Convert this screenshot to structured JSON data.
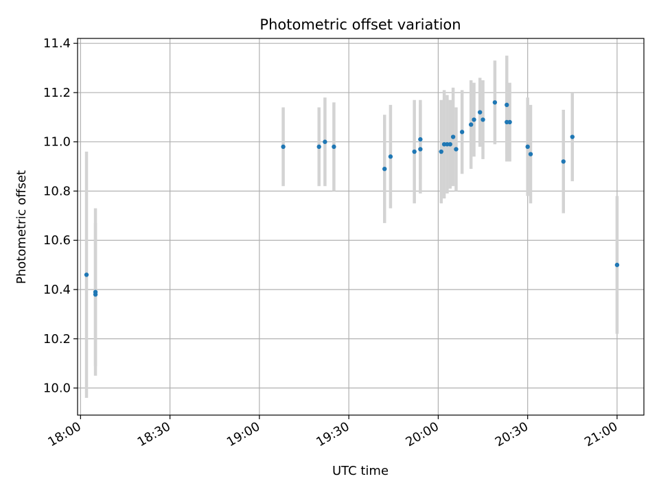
{
  "chart_data": {
    "type": "scatter",
    "title": "Photometric offset variation",
    "xlabel": "UTC time",
    "ylabel": "Photometric offset",
    "grid": true,
    "x_ticks": [
      "18:00",
      "18:30",
      "19:00",
      "19:30",
      "20:00",
      "20:30",
      "21:00"
    ],
    "y_ticks": [
      "10.0",
      "10.2",
      "10.4",
      "10.6",
      "10.8",
      "11.0",
      "11.2",
      "11.4"
    ],
    "xlim": [
      "17:59",
      "21:09"
    ],
    "ylim": [
      9.89,
      11.42
    ],
    "marker_color": "#1f77b4",
    "errorbar_color": "#d3d3d3",
    "points": [
      {
        "time": "18:02",
        "value": 10.46,
        "error": 0.5
      },
      {
        "time": "18:05",
        "value": 10.38,
        "error": 0.29
      },
      {
        "time": "18:05",
        "value": 10.39,
        "error": 0.34
      },
      {
        "time": "19:08",
        "value": 10.98,
        "error": 0.16
      },
      {
        "time": "19:20",
        "value": 10.98,
        "error": 0.16
      },
      {
        "time": "19:22",
        "value": 11.0,
        "error": 0.18
      },
      {
        "time": "19:25",
        "value": 10.98,
        "error": 0.18
      },
      {
        "time": "19:42",
        "value": 10.89,
        "error": 0.22
      },
      {
        "time": "19:44",
        "value": 10.94,
        "error": 0.21
      },
      {
        "time": "19:52",
        "value": 10.96,
        "error": 0.21
      },
      {
        "time": "19:54",
        "value": 11.01,
        "error": 0.16
      },
      {
        "time": "19:54",
        "value": 10.97,
        "error": 0.18
      },
      {
        "time": "20:01",
        "value": 10.96,
        "error": 0.21
      },
      {
        "time": "20:02",
        "value": 10.99,
        "error": 0.22
      },
      {
        "time": "20:03",
        "value": 10.99,
        "error": 0.2
      },
      {
        "time": "20:04",
        "value": 10.99,
        "error": 0.18
      },
      {
        "time": "20:05",
        "value": 11.02,
        "error": 0.2
      },
      {
        "time": "20:06",
        "value": 10.97,
        "error": 0.17
      },
      {
        "time": "20:08",
        "value": 11.04,
        "error": 0.17
      },
      {
        "time": "20:11",
        "value": 11.07,
        "error": 0.18
      },
      {
        "time": "20:12",
        "value": 11.09,
        "error": 0.15
      },
      {
        "time": "20:14",
        "value": 11.12,
        "error": 0.14
      },
      {
        "time": "20:15",
        "value": 11.09,
        "error": 0.16
      },
      {
        "time": "20:19",
        "value": 11.16,
        "error": 0.17
      },
      {
        "time": "20:23",
        "value": 11.15,
        "error": 0.2
      },
      {
        "time": "20:23",
        "value": 11.08,
        "error": 0.16
      },
      {
        "time": "20:24",
        "value": 11.08,
        "error": 0.16
      },
      {
        "time": "20:30",
        "value": 10.98,
        "error": 0.2
      },
      {
        "time": "20:31",
        "value": 10.95,
        "error": 0.2
      },
      {
        "time": "20:42",
        "value": 10.92,
        "error": 0.21
      },
      {
        "time": "20:45",
        "value": 11.02,
        "error": 0.18
      },
      {
        "time": "21:00",
        "value": 10.5,
        "error": 0.28
      }
    ]
  }
}
